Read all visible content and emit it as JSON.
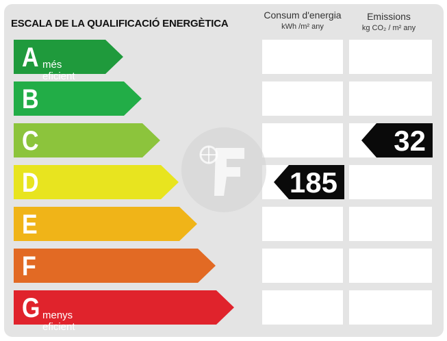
{
  "header": {
    "title": "ESCALA DE LA QUALIFICACIÓ ENERGÈTICA",
    "consum_title": "Consum d'energia",
    "consum_unit": "kWh /m² any",
    "emissions_title": "Emissions",
    "emissions_unit": "kg CO₂ / m² any"
  },
  "rating": {
    "rows": [
      {
        "letter": "A",
        "sublabel": "més eficient",
        "color": "#1f9a3c"
      },
      {
        "letter": "B",
        "sublabel": "",
        "color": "#22ad47"
      },
      {
        "letter": "C",
        "sublabel": "",
        "color": "#8cc43c"
      },
      {
        "letter": "D",
        "sublabel": "",
        "color": "#e8e41f"
      },
      {
        "letter": "E",
        "sublabel": "",
        "color": "#f0b418"
      },
      {
        "letter": "F",
        "sublabel": "",
        "color": "#e26a24"
      },
      {
        "letter": "G",
        "sublabel": "menys eficient",
        "color": "#e0232c"
      }
    ]
  },
  "consum": {
    "value": "185",
    "class": "D"
  },
  "emissions": {
    "value": "32",
    "class": "C"
  },
  "watermark": {
    "icon": "logo-watermark-icon"
  }
}
